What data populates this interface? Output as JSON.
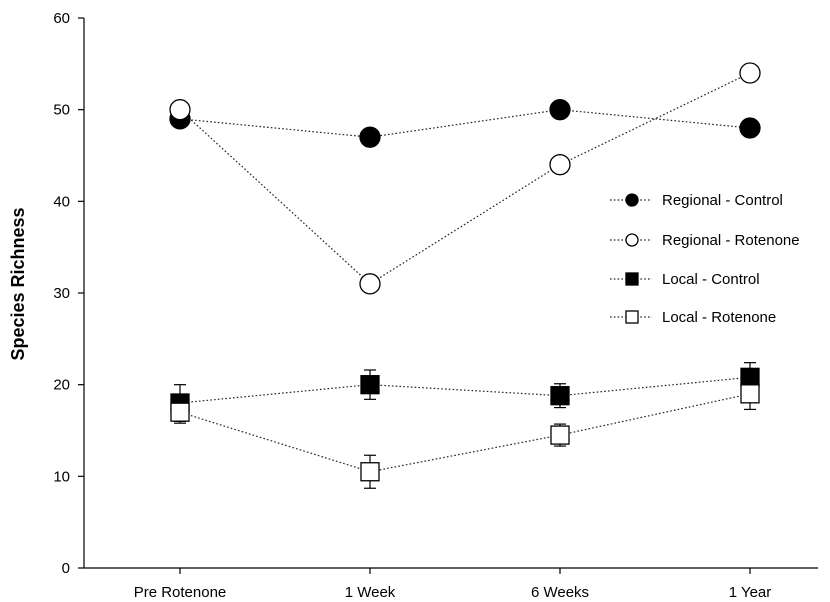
{
  "chart_data": {
    "type": "line",
    "title": "",
    "xlabel": "",
    "ylabel": "Species Richness",
    "categories": [
      "Pre Rotenone",
      "1 Week",
      "6 Weeks",
      "1 Year"
    ],
    "ylim": [
      0,
      60
    ],
    "yticks": [
      0,
      10,
      20,
      30,
      40,
      50,
      60
    ],
    "grid": false,
    "legend_position": "right",
    "series": [
      {
        "name": "Regional - Control",
        "marker": "circle",
        "fill": "#000000",
        "values": [
          49,
          47,
          50,
          48
        ],
        "errors": null
      },
      {
        "name": "Regional - Rotenone",
        "marker": "circle",
        "fill": "#ffffff",
        "values": [
          50,
          31,
          44,
          54
        ],
        "errors": null
      },
      {
        "name": "Local - Control",
        "marker": "square",
        "fill": "#000000",
        "values": [
          18,
          20,
          18.8,
          20.8
        ],
        "errors": [
          2,
          1.6,
          1.3,
          1.6
        ]
      },
      {
        "name": "Local - Rotenone",
        "marker": "square",
        "fill": "#ffffff",
        "values": [
          17,
          10.5,
          14.5,
          19
        ],
        "errors": [
          1.2,
          1.8,
          1.2,
          1.7
        ]
      }
    ]
  }
}
